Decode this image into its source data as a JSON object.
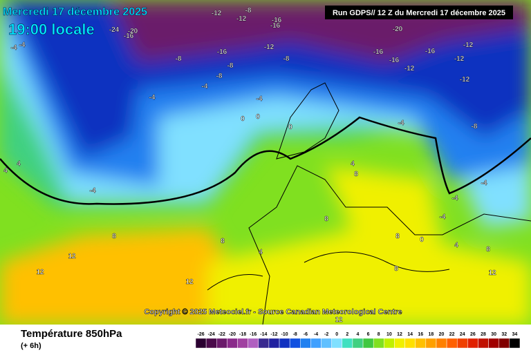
{
  "header": {
    "date": "Mercredi 17 décembre 2025",
    "time": "19:00 locale",
    "run": "Run GDPS// 12 Z du Mercredi 17 décembre 2025",
    "copyright": "Copyright © 2025 Meteociel.fr - Source Canadian Meteorological Centre"
  },
  "legend": {
    "title": "Température 850hPa",
    "subtitle": "(+ 6h)",
    "ticks": [
      {
        "value": -26,
        "color": "#2a0030"
      },
      {
        "value": -24,
        "color": "#4a0a4a"
      },
      {
        "value": -22,
        "color": "#6a1a6a"
      },
      {
        "value": -20,
        "color": "#8a2a8a"
      },
      {
        "value": -18,
        "color": "#a040a0"
      },
      {
        "value": -16,
        "color": "#b060c0"
      },
      {
        "value": -14,
        "color": "#3a2a90"
      },
      {
        "value": -12,
        "color": "#2020a0"
      },
      {
        "value": -10,
        "color": "#1030c0"
      },
      {
        "value": -8,
        "color": "#1050e0"
      },
      {
        "value": -6,
        "color": "#2080f0"
      },
      {
        "value": -4,
        "color": "#40a0ff"
      },
      {
        "value": -2,
        "color": "#60c0ff"
      },
      {
        "value": 0,
        "color": "#80e0ff"
      },
      {
        "value": 2,
        "color": "#40e0c0"
      },
      {
        "value": 4,
        "color": "#40d080"
      },
      {
        "value": 6,
        "color": "#40c840"
      },
      {
        "value": 8,
        "color": "#80e020"
      },
      {
        "value": 10,
        "color": "#c0f000"
      },
      {
        "value": 12,
        "color": "#f0f000"
      },
      {
        "value": 14,
        "color": "#ffe000"
      },
      {
        "value": 16,
        "color": "#ffc000"
      },
      {
        "value": 18,
        "color": "#ffa000"
      },
      {
        "value": 20,
        "color": "#ff8000"
      },
      {
        "value": 22,
        "color": "#ff6000"
      },
      {
        "value": 24,
        "color": "#f04000"
      },
      {
        "value": 26,
        "color": "#e02000"
      },
      {
        "value": 28,
        "color": "#c01000"
      },
      {
        "value": 30,
        "color": "#a00000"
      },
      {
        "value": 32,
        "color": "#800000"
      },
      {
        "value": 34,
        "color": "#000000"
      }
    ]
  },
  "contour_labels": [
    -24,
    -16,
    -20,
    -12,
    -12,
    -8,
    -16,
    -16,
    -16,
    -12,
    -8,
    -8,
    -8,
    -8,
    -4,
    -4,
    -4,
    -4,
    -4,
    -4,
    0,
    0,
    0,
    4,
    4,
    4,
    8,
    8,
    12,
    12,
    12,
    12,
    -20,
    -16,
    -16,
    -12,
    -12,
    -12,
    -12,
    -16,
    -8,
    -4,
    -4,
    -4,
    -4,
    0,
    4,
    8,
    12,
    8,
    8,
    4,
    8,
    8
  ]
}
